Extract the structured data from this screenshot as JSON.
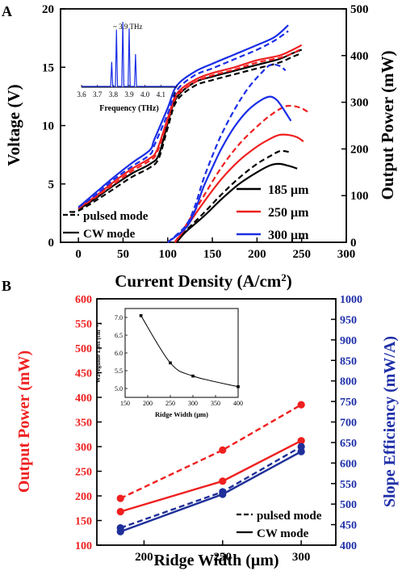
{
  "colors": {
    "black": "#000000",
    "red": "#ef2020",
    "blue": "#1a2ee6",
    "darkblue": "#1f2f99",
    "rightaxis": "#1f2fa8"
  },
  "panelA": {
    "label": "A",
    "chart_data": {
      "type": "line",
      "xlabel": "Current Density (A/cm²)",
      "ylabel_left": "Voltage (V)",
      "ylabel_right": "Output Power (mW)",
      "xlim": [
        -20,
        300
      ],
      "ylim_left": [
        0,
        20
      ],
      "ylim_right": [
        0,
        500
      ],
      "xticks": [
        "0",
        "50",
        "100",
        "150",
        "200",
        "250",
        "300"
      ],
      "yticks_left": [
        "0",
        "5",
        "10",
        "15",
        "20"
      ],
      "yticks_right": [
        "0",
        "100",
        "200",
        "300",
        "400",
        "500"
      ],
      "legend_width": [
        "185 μm",
        "250 μm",
        "300 μm"
      ],
      "legend_mode": [
        "pulsed mode",
        "CW mode"
      ],
      "series": [
        {
          "name": "185 μm",
          "mode": "CW",
          "axis": "left",
          "color": "black",
          "points": [
            [
              0,
              2.8
            ],
            [
              20,
              3.8
            ],
            [
              40,
              4.9
            ],
            [
              60,
              5.9
            ],
            [
              80,
              6.7
            ],
            [
              90,
              7.5
            ],
            [
              100,
              10.2
            ],
            [
              110,
              12.4
            ],
            [
              130,
              13.7
            ],
            [
              150,
              14.2
            ],
            [
              175,
              14.7
            ],
            [
              200,
              15.2
            ],
            [
              225,
              15.7
            ],
            [
              240,
              16.2
            ],
            [
              250,
              16.5
            ]
          ]
        },
        {
          "name": "185 μm",
          "mode": "pulsed",
          "axis": "left",
          "color": "black",
          "points": [
            [
              -10,
              2.6
            ],
            [
              0,
              2.7
            ],
            [
              20,
              3.6
            ],
            [
              40,
              4.6
            ],
            [
              60,
              5.6
            ],
            [
              80,
              6.4
            ],
            [
              90,
              7.2
            ],
            [
              100,
              9.8
            ],
            [
              110,
              12.1
            ],
            [
              130,
              13.4
            ],
            [
              150,
              13.9
            ],
            [
              175,
              14.4
            ],
            [
              200,
              14.9
            ],
            [
              225,
              15.4
            ],
            [
              240,
              15.9
            ],
            [
              250,
              16.2
            ]
          ]
        },
        {
          "name": "250 μm",
          "mode": "CW",
          "axis": "left",
          "color": "red",
          "points": [
            [
              0,
              2.9
            ],
            [
              20,
              4.0
            ],
            [
              40,
              5.2
            ],
            [
              60,
              6.3
            ],
            [
              80,
              7.2
            ],
            [
              88,
              7.9
            ],
            [
              100,
              10.6
            ],
            [
              110,
              12.7
            ],
            [
              130,
              13.9
            ],
            [
              150,
              14.5
            ],
            [
              175,
              15.0
            ],
            [
              200,
              15.6
            ],
            [
              225,
              16.0
            ],
            [
              240,
              16.5
            ],
            [
              250,
              16.9
            ]
          ]
        },
        {
          "name": "250 μm",
          "mode": "pulsed",
          "axis": "left",
          "color": "red",
          "points": [
            [
              0,
              2.9
            ],
            [
              20,
              3.9
            ],
            [
              40,
              5.0
            ],
            [
              60,
              6.1
            ],
            [
              80,
              7.0
            ],
            [
              88,
              7.7
            ],
            [
              100,
              10.4
            ],
            [
              110,
              12.5
            ],
            [
              130,
              13.7
            ],
            [
              150,
              14.3
            ],
            [
              175,
              14.8
            ],
            [
              200,
              15.4
            ],
            [
              225,
              15.8
            ],
            [
              240,
              16.2
            ],
            [
              250,
              16.6
            ]
          ]
        },
        {
          "name": "300 μm",
          "mode": "CW",
          "axis": "left",
          "color": "blue",
          "points": [
            [
              0,
              3.0
            ],
            [
              20,
              4.3
            ],
            [
              40,
              5.6
            ],
            [
              60,
              6.8
            ],
            [
              80,
              7.9
            ],
            [
              85,
              8.8
            ],
            [
              100,
              11.5
            ],
            [
              110,
              13.4
            ],
            [
              130,
              14.6
            ],
            [
              150,
              15.3
            ],
            [
              175,
              16.1
            ],
            [
              200,
              16.9
            ],
            [
              220,
              17.6
            ],
            [
              235,
              18.6
            ]
          ]
        },
        {
          "name": "300 μm",
          "mode": "pulsed",
          "axis": "left",
          "color": "blue",
          "points": [
            [
              0,
              3.0
            ],
            [
              20,
              4.1
            ],
            [
              40,
              5.4
            ],
            [
              60,
              6.5
            ],
            [
              80,
              7.5
            ],
            [
              85,
              8.3
            ],
            [
              100,
              11.0
            ],
            [
              110,
              13.0
            ],
            [
              130,
              14.3
            ],
            [
              150,
              14.9
            ],
            [
              175,
              15.7
            ],
            [
              200,
              16.5
            ],
            [
              220,
              17.3
            ],
            [
              235,
              18.1
            ]
          ]
        },
        {
          "name": "185 μm",
          "mode": "CW",
          "axis": "right",
          "color": "black",
          "points": [
            [
              110,
              0
            ],
            [
              120,
              22
            ],
            [
              140,
              55
            ],
            [
              160,
              92
            ],
            [
              180,
              125
            ],
            [
              200,
              150
            ],
            [
              215,
              165
            ],
            [
              225,
              168
            ],
            [
              235,
              164
            ],
            [
              245,
              158
            ]
          ]
        },
        {
          "name": "185 μm",
          "mode": "pulsed",
          "axis": "right",
          "color": "black",
          "points": [
            [
              110,
              0
            ],
            [
              120,
              24
            ],
            [
              140,
              62
            ],
            [
              160,
              102
            ],
            [
              180,
              138
            ],
            [
              200,
              168
            ],
            [
              215,
              185
            ],
            [
              225,
              195
            ],
            [
              232,
              195
            ],
            [
              238,
              192
            ]
          ]
        },
        {
          "name": "250 μm",
          "mode": "CW",
          "axis": "right",
          "color": "red",
          "points": [
            [
              108,
              0
            ],
            [
              120,
              30
            ],
            [
              140,
              85
            ],
            [
              160,
              135
            ],
            [
              180,
              175
            ],
            [
              200,
              205
            ],
            [
              215,
              222
            ],
            [
              225,
              230
            ],
            [
              235,
              230
            ],
            [
              245,
              225
            ],
            [
              252,
              216
            ]
          ]
        },
        {
          "name": "250 μm",
          "mode": "pulsed",
          "axis": "right",
          "color": "red",
          "points": [
            [
              108,
              0
            ],
            [
              120,
              35
            ],
            [
              140,
              98
            ],
            [
              160,
              160
            ],
            [
              180,
              210
            ],
            [
              200,
              248
            ],
            [
              215,
              272
            ],
            [
              230,
              290
            ],
            [
              240,
              292
            ],
            [
              250,
              287
            ],
            [
              258,
              278
            ]
          ]
        },
        {
          "name": "300 μm",
          "mode": "CW",
          "axis": "right",
          "color": "blue",
          "points": [
            [
              100,
              0
            ],
            [
              120,
              30
            ],
            [
              130,
              65
            ],
            [
              140,
              118
            ],
            [
              150,
              160
            ],
            [
              160,
              200
            ],
            [
              175,
              248
            ],
            [
              190,
              283
            ],
            [
              205,
              305
            ],
            [
              215,
              312
            ],
            [
              222,
              305
            ],
            [
              228,
              290
            ],
            [
              234,
              272
            ],
            [
              238,
              260
            ]
          ]
        },
        {
          "name": "300 μm",
          "mode": "pulsed",
          "axis": "right",
          "color": "blue",
          "points": [
            [
              100,
              0
            ],
            [
              120,
              35
            ],
            [
              130,
              75
            ],
            [
              140,
              135
            ],
            [
              150,
              185
            ],
            [
              160,
              230
            ],
            [
              175,
              285
            ],
            [
              190,
              330
            ],
            [
              205,
              363
            ],
            [
              215,
              380
            ],
            [
              225,
              378
            ],
            [
              232,
              368
            ]
          ]
        }
      ]
    },
    "inset": {
      "xlabel": "Frequency (THz)",
      "xticks": [
        "3.6",
        "3.7",
        "3.8",
        "3.9",
        "4.0",
        "4.1",
        "4.2"
      ],
      "annotation": "~ 3.9 THz",
      "color": "blue",
      "peaks": [
        [
          3.79,
          0.38
        ],
        [
          3.82,
          0.88
        ],
        [
          3.86,
          1.0
        ],
        [
          3.9,
          0.9
        ],
        [
          3.94,
          0.5
        ]
      ]
    }
  },
  "panelB": {
    "label": "B",
    "chart_data": {
      "type": "line",
      "xlabel": "Ridge Width (μm)",
      "ylabel_left": "Output Power (mW)",
      "ylabel_right": "Slope Efficiency (mW/A)",
      "x": [
        185,
        250,
        300
      ],
      "xlim": [
        170,
        322
      ],
      "xticks": [
        "200",
        "250",
        "300"
      ],
      "ylim_left": [
        100,
        600
      ],
      "yticks_left": [
        "100",
        "150",
        "200",
        "250",
        "300",
        "350",
        "400",
        "450",
        "500",
        "550",
        "600"
      ],
      "ylim_right": [
        400,
        1000
      ],
      "yticks_right": [
        "400",
        "450",
        "500",
        "550",
        "600",
        "650",
        "700",
        "750",
        "800",
        "850",
        "900",
        "950",
        "1000"
      ],
      "legend": [
        "pulsed mode",
        "CW mode"
      ],
      "series": [
        {
          "axis": "left",
          "mode": "pulsed",
          "color": "red",
          "values": [
            195,
            293,
            385
          ]
        },
        {
          "axis": "left",
          "mode": "CW",
          "color": "red",
          "values": [
            168,
            230,
            312
          ]
        },
        {
          "axis": "right",
          "mode": "pulsed",
          "color": "darkblue",
          "values": [
            442,
            530,
            640
          ]
        },
        {
          "axis": "right",
          "mode": "CW",
          "color": "darkblue",
          "values": [
            433,
            524,
            628
          ]
        }
      ]
    },
    "inset": {
      "xlabel": "Ridge Width (μm)",
      "ylabel": "Waveguide Loss (cm⁻¹)",
      "xlim": [
        150,
        400
      ],
      "ylim": [
        4.75,
        7.25
      ],
      "xticks": [
        "150",
        "200",
        "250",
        "300",
        "350",
        "400"
      ],
      "yticks": [
        "5.0",
        "5.5",
        "6.0",
        "6.5",
        "7.0"
      ],
      "x": [
        185,
        250,
        300,
        400
      ],
      "values": [
        7.05,
        5.72,
        5.35,
        5.05
      ]
    }
  }
}
